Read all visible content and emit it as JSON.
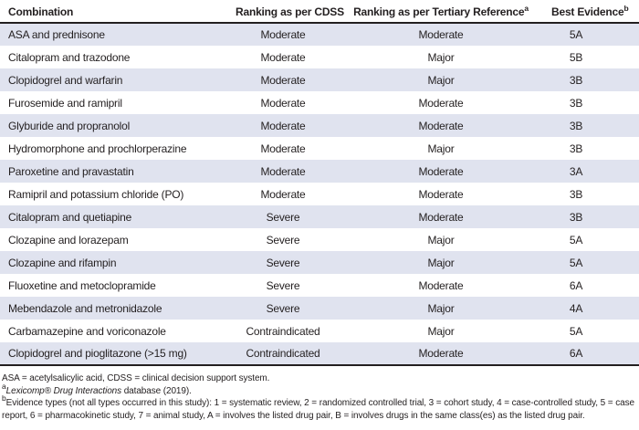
{
  "table": {
    "columns": [
      {
        "label": "Combination",
        "sup": ""
      },
      {
        "label": "Ranking as per CDSS",
        "sup": ""
      },
      {
        "label": "Ranking as per Tertiary Reference",
        "sup": "a"
      },
      {
        "label": "Best Evidence",
        "sup": "b"
      }
    ],
    "rows": [
      {
        "c": "ASA and prednisone",
        "cdss": "Moderate",
        "tert": "Moderate",
        "ev": "5A"
      },
      {
        "c": "Citalopram and trazodone",
        "cdss": "Moderate",
        "tert": "Major",
        "ev": "5B"
      },
      {
        "c": "Clopidogrel and warfarin",
        "cdss": "Moderate",
        "tert": "Major",
        "ev": "3B"
      },
      {
        "c": "Furosemide and ramipril",
        "cdss": "Moderate",
        "tert": "Moderate",
        "ev": "3B"
      },
      {
        "c": "Glyburide and propranolol",
        "cdss": "Moderate",
        "tert": "Moderate",
        "ev": "3B"
      },
      {
        "c": "Hydromorphone and prochlorperazine",
        "cdss": "Moderate",
        "tert": "Major",
        "ev": "3B"
      },
      {
        "c": "Paroxetine and pravastatin",
        "cdss": "Moderate",
        "tert": "Moderate",
        "ev": "3A"
      },
      {
        "c": "Ramipril and potassium chloride (PO)",
        "cdss": "Moderate",
        "tert": "Moderate",
        "ev": "3B"
      },
      {
        "c": "Citalopram and quetiapine",
        "cdss": "Severe",
        "tert": "Moderate",
        "ev": "3B"
      },
      {
        "c": "Clozapine and lorazepam",
        "cdss": "Severe",
        "tert": "Major",
        "ev": "5A"
      },
      {
        "c": "Clozapine and rifampin",
        "cdss": "Severe",
        "tert": "Major",
        "ev": "5A"
      },
      {
        "c": "Fluoxetine and metoclopramide",
        "cdss": "Severe",
        "tert": "Moderate",
        "ev": "6A"
      },
      {
        "c": "Mebendazole and metronidazole",
        "cdss": "Severe",
        "tert": "Major",
        "ev": "4A"
      },
      {
        "c": "Carbamazepine and voriconazole",
        "cdss": "Contraindicated",
        "tert": "Major",
        "ev": "5A"
      },
      {
        "c": "Clopidogrel and pioglitazone (>15 mg)",
        "cdss": "Contraindicated",
        "tert": "Moderate",
        "ev": "6A"
      }
    ]
  },
  "footnotes": {
    "line1": "ASA = acetylsalicylic acid, CDSS = clinical decision support system.",
    "a_sup": "a",
    "a_italic": "Lexicomp® Drug Interactions",
    "a_rest": " database (2019).",
    "b_sup": "b",
    "b_text": "Evidence types (not all types occurred in this study): 1 = systematic review, 2 = randomized controlled trial, 3 = cohort study, 4 = case-controlled study, 5 = case report, 6 = pharmacokinetic study, 7 = animal study, A = involves the listed drug pair, B = involves drugs in the same class(es) as the listed drug pair."
  },
  "colors": {
    "row_stripe": "#e0e3ef",
    "rule": "#231f20",
    "text": "#231f20"
  }
}
